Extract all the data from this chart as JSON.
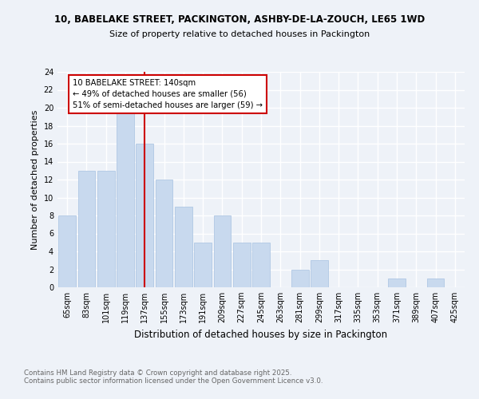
{
  "title1": "10, BABELAKE STREET, PACKINGTON, ASHBY-DE-LA-ZOUCH, LE65 1WD",
  "title2": "Size of property relative to detached houses in Packington",
  "xlabel": "Distribution of detached houses by size in Packington",
  "ylabel": "Number of detached properties",
  "categories": [
    "65sqm",
    "83sqm",
    "101sqm",
    "119sqm",
    "137sqm",
    "155sqm",
    "173sqm",
    "191sqm",
    "209sqm",
    "227sqm",
    "245sqm",
    "263sqm",
    "281sqm",
    "299sqm",
    "317sqm",
    "335sqm",
    "353sqm",
    "371sqm",
    "389sqm",
    "407sqm",
    "425sqm"
  ],
  "values": [
    8,
    13,
    13,
    20,
    16,
    12,
    9,
    5,
    8,
    5,
    5,
    0,
    2,
    3,
    0,
    0,
    0,
    1,
    0,
    1,
    0
  ],
  "bar_color": "#c8d9ee",
  "bar_edge_color": "#b0c8e4",
  "vline_x": 4,
  "vline_color": "#cc0000",
  "ylim": [
    0,
    24
  ],
  "yticks": [
    0,
    2,
    4,
    6,
    8,
    10,
    12,
    14,
    16,
    18,
    20,
    22,
    24
  ],
  "annotation_title": "10 BABELAKE STREET: 140sqm",
  "annotation_line1": "← 49% of detached houses are smaller (56)",
  "annotation_line2": "51% of semi-detached houses are larger (59) →",
  "annotation_box_color": "#ffffff",
  "annotation_box_edge": "#cc0000",
  "footnote1": "Contains HM Land Registry data © Crown copyright and database right 2025.",
  "footnote2": "Contains public sector information licensed under the Open Government Licence v3.0.",
  "bg_color": "#eef2f8",
  "grid_color": "#ffffff"
}
